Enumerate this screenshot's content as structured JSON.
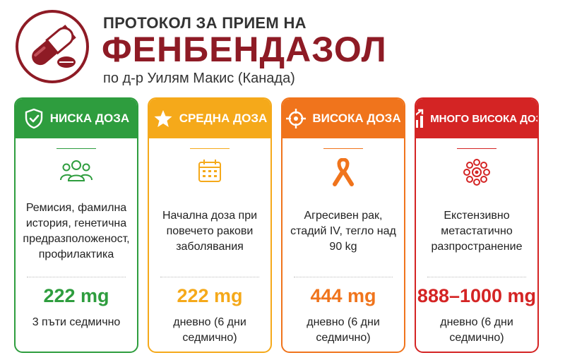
{
  "header": {
    "title_top": "ПРОТОКОЛ ЗА ПРИЕМ НА",
    "title_main": "ФЕНБЕНДАЗОЛ",
    "subtitle": "по д-р Уилям Макис (Канада)",
    "logo_icon": "pill-capsule-icon"
  },
  "colors": {
    "brand": "#8e1b25",
    "low": "#2e9d3e",
    "medium": "#f5a91a",
    "high": "#f0741c",
    "very_high": "#d42424"
  },
  "cards": [
    {
      "label": "НИСКА ДОЗА",
      "header_icon": "shield-check-icon",
      "content_icon": "people-group-icon",
      "description": "Ремисия, фамилна история, генетична предразположеност, профилактика",
      "dose": "222 mg",
      "frequency": "3 пъти седмично"
    },
    {
      "label": "СРЕДНА ДОЗА",
      "header_icon": "star-icon",
      "content_icon": "calendar-icon",
      "description": "Начална доза при повечето ракови заболявания",
      "dose": "222 mg",
      "frequency": "дневно (6 дни седмично)"
    },
    {
      "label": "ВИСОКА ДОЗА",
      "header_icon": "target-icon",
      "content_icon": "awareness-ribbon-icon",
      "description": "Агресивен рак, стадий IV, тегло над 90 kg",
      "dose": "444 mg",
      "frequency": "дневно (6 дни седмично)"
    },
    {
      "label": "МНОГО ВИСОКА ДОЗА",
      "header_icon": "rising-chart-icon",
      "content_icon": "cell-cluster-icon",
      "description": "Екстензивно метастатично разпространение",
      "dose": "888–1000 mg",
      "frequency": "дневно (6 дни седмично)"
    }
  ]
}
